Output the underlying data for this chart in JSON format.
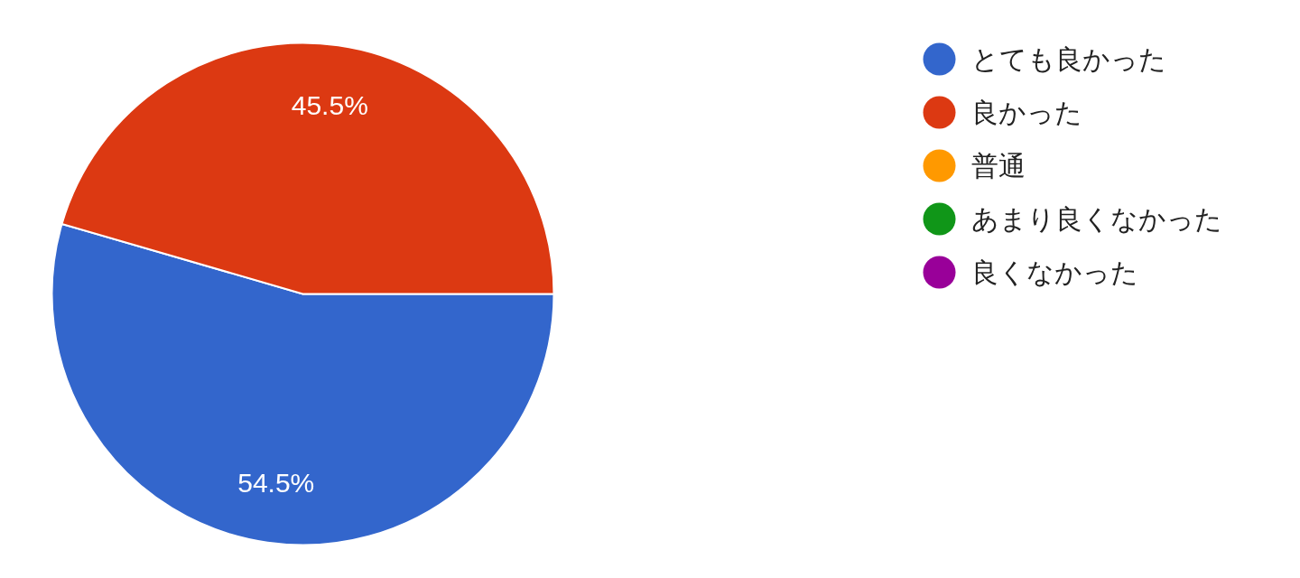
{
  "chart_data": {
    "type": "pie",
    "categories": [
      "とても良かった",
      "良かった",
      "普通",
      "あまり良くなかった",
      "良くなかった"
    ],
    "values": [
      54.5,
      45.5,
      0,
      0,
      0
    ],
    "colors": [
      "#3366cc",
      "#dc3912",
      "#ff9900",
      "#109618",
      "#990099"
    ],
    "value_labels": [
      "54.5%",
      "45.5%",
      null,
      null,
      null
    ],
    "legend": "top right"
  }
}
